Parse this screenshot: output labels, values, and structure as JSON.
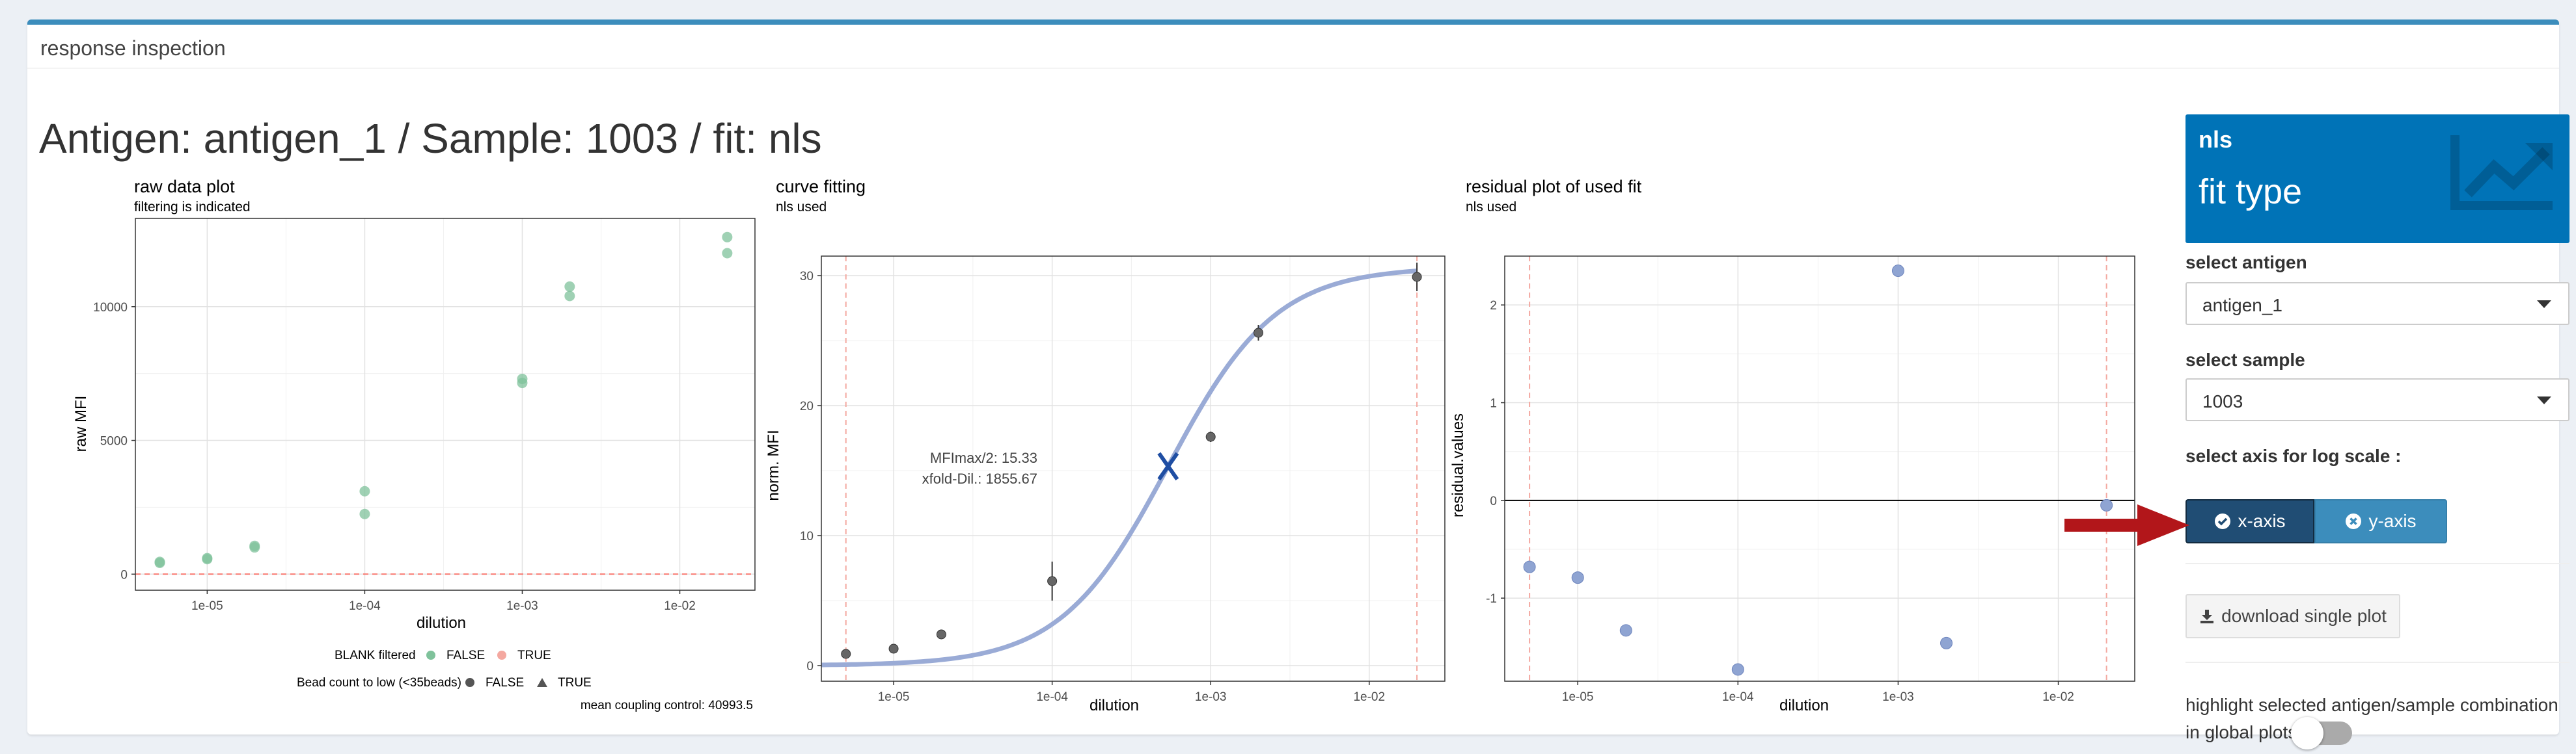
{
  "box": {
    "title": "response inspection"
  },
  "heading": "Antigen: antigen_1 / Sample: 1003 / fit: nls",
  "plots": {
    "raw": {
      "title": "raw data plot",
      "subtitle": "filtering is indicated",
      "xlabel": "dilution",
      "ylabel": "raw MFI",
      "xticks": [
        "1e-05",
        "1e-04",
        "1e-03",
        "1e-02"
      ],
      "yticks": [
        "0",
        "5000",
        "10000"
      ],
      "legend_blank_title": "BLANK filtered",
      "legend_blank_false": "FALSE",
      "legend_blank_true": "TRUE",
      "legend_bead_title": "Bead count to low (<35beads)",
      "legend_bead_false": "FALSE",
      "legend_bead_true": "TRUE",
      "footnote": "mean coupling control: 40993.5"
    },
    "curve": {
      "title": "curve fitting",
      "subtitle": "nls used",
      "xlabel": "dilution",
      "ylabel": "norm. MFI",
      "xticks": [
        "1e-05",
        "1e-04",
        "1e-03",
        "1e-02"
      ],
      "yticks": [
        "0",
        "10",
        "20",
        "30"
      ],
      "annotation_line1": "MFImax/2: 15.33",
      "annotation_line2": "xfold-Dil.: 1855.67"
    },
    "residual": {
      "title": "residual plot of used fit",
      "subtitle": "nls used",
      "xlabel": "dilution",
      "ylabel": "residual.values",
      "xticks": [
        "1e-05",
        "1e-04",
        "1e-03",
        "1e-02"
      ],
      "yticks": [
        "-1",
        "0",
        "1",
        "2"
      ]
    }
  },
  "chart_data": [
    {
      "type": "scatter",
      "title": "raw data plot",
      "subtitle": "filtering is indicated",
      "xlabel": "dilution",
      "ylabel": "raw MFI",
      "xscale": "log",
      "xlim": [
        3.5e-06,
        0.03
      ],
      "ylim": [
        -600,
        13300
      ],
      "series": [
        {
          "name": "FALSE",
          "color": "#7fc29b",
          "points": [
            [
              5e-06,
              420
            ],
            [
              5e-06,
              460
            ],
            [
              1e-05,
              560
            ],
            [
              1e-05,
              600
            ],
            [
              2e-05,
              1000
            ],
            [
              2e-05,
              1060
            ],
            [
              0.0001,
              2250
            ],
            [
              0.0001,
              3100
            ],
            [
              0.001,
              7150
            ],
            [
              0.001,
              7300
            ],
            [
              0.002,
              10400
            ],
            [
              0.002,
              10750
            ],
            [
              0.02,
              12000
            ],
            [
              0.02,
              12600
            ]
          ]
        }
      ],
      "hline": 0,
      "grid": true
    },
    {
      "type": "scatter",
      "title": "curve fitting",
      "subtitle": "nls used",
      "xlabel": "dilution",
      "ylabel": "norm. MFI",
      "xscale": "log",
      "xlim": [
        3.5e-06,
        0.03
      ],
      "ylim": [
        -1.2,
        31.5
      ],
      "points": [
        [
          5e-06,
          0.9
        ],
        [
          1e-05,
          1.3
        ],
        [
          2e-05,
          2.4
        ],
        [
          0.0001,
          6.5
        ],
        [
          0.001,
          17.6
        ],
        [
          0.002,
          25.6
        ],
        [
          0.02,
          29.9
        ]
      ],
      "error_bars": [
        [
          5e-06,
          0.6,
          1.2
        ],
        [
          1e-05,
          1.1,
          1.5
        ],
        [
          2e-05,
          2.1,
          2.7
        ],
        [
          0.0001,
          5.0,
          8.0
        ],
        [
          0.001,
          17.2,
          18.0
        ],
        [
          0.002,
          25.0,
          26.2
        ],
        [
          0.02,
          28.8,
          31.0
        ]
      ],
      "fit_curve": {
        "top": 30.66,
        "ec50": 0.000539,
        "slope": 1.28
      },
      "vlines": [
        5e-06,
        0.02
      ],
      "marker": [
        0.000539,
        15.33
      ],
      "grid": true
    },
    {
      "type": "scatter",
      "title": "residual plot of used fit",
      "subtitle": "nls used",
      "xlabel": "dilution",
      "ylabel": "residual.values",
      "xscale": "log",
      "xlim": [
        3.5e-06,
        0.03
      ],
      "ylim": [
        -1.85,
        2.5
      ],
      "points": [
        [
          5e-06,
          -0.68
        ],
        [
          1e-05,
          -0.79
        ],
        [
          2e-05,
          -1.33
        ],
        [
          0.0001,
          -1.73
        ],
        [
          0.001,
          2.35
        ],
        [
          0.002,
          -1.46
        ],
        [
          0.02,
          -0.05
        ]
      ],
      "hline": 0,
      "vlines": [
        5e-06,
        0.02
      ],
      "grid": true
    }
  ],
  "infobox": {
    "value": "nls",
    "label": "fit type",
    "icon": "line-chart-icon",
    "color": "#0073b7"
  },
  "controls": {
    "antigen_label": "select antigen",
    "antigen_value": "antigen_1",
    "sample_label": "select sample",
    "sample_value": "1003",
    "logscale_label": "select axis for log scale :",
    "xaxis_label": "x-axis",
    "yaxis_label": "y-axis",
    "download_label": "download single plot",
    "highlight_label": "highlight selected antigen/sample combination in global plots?"
  }
}
